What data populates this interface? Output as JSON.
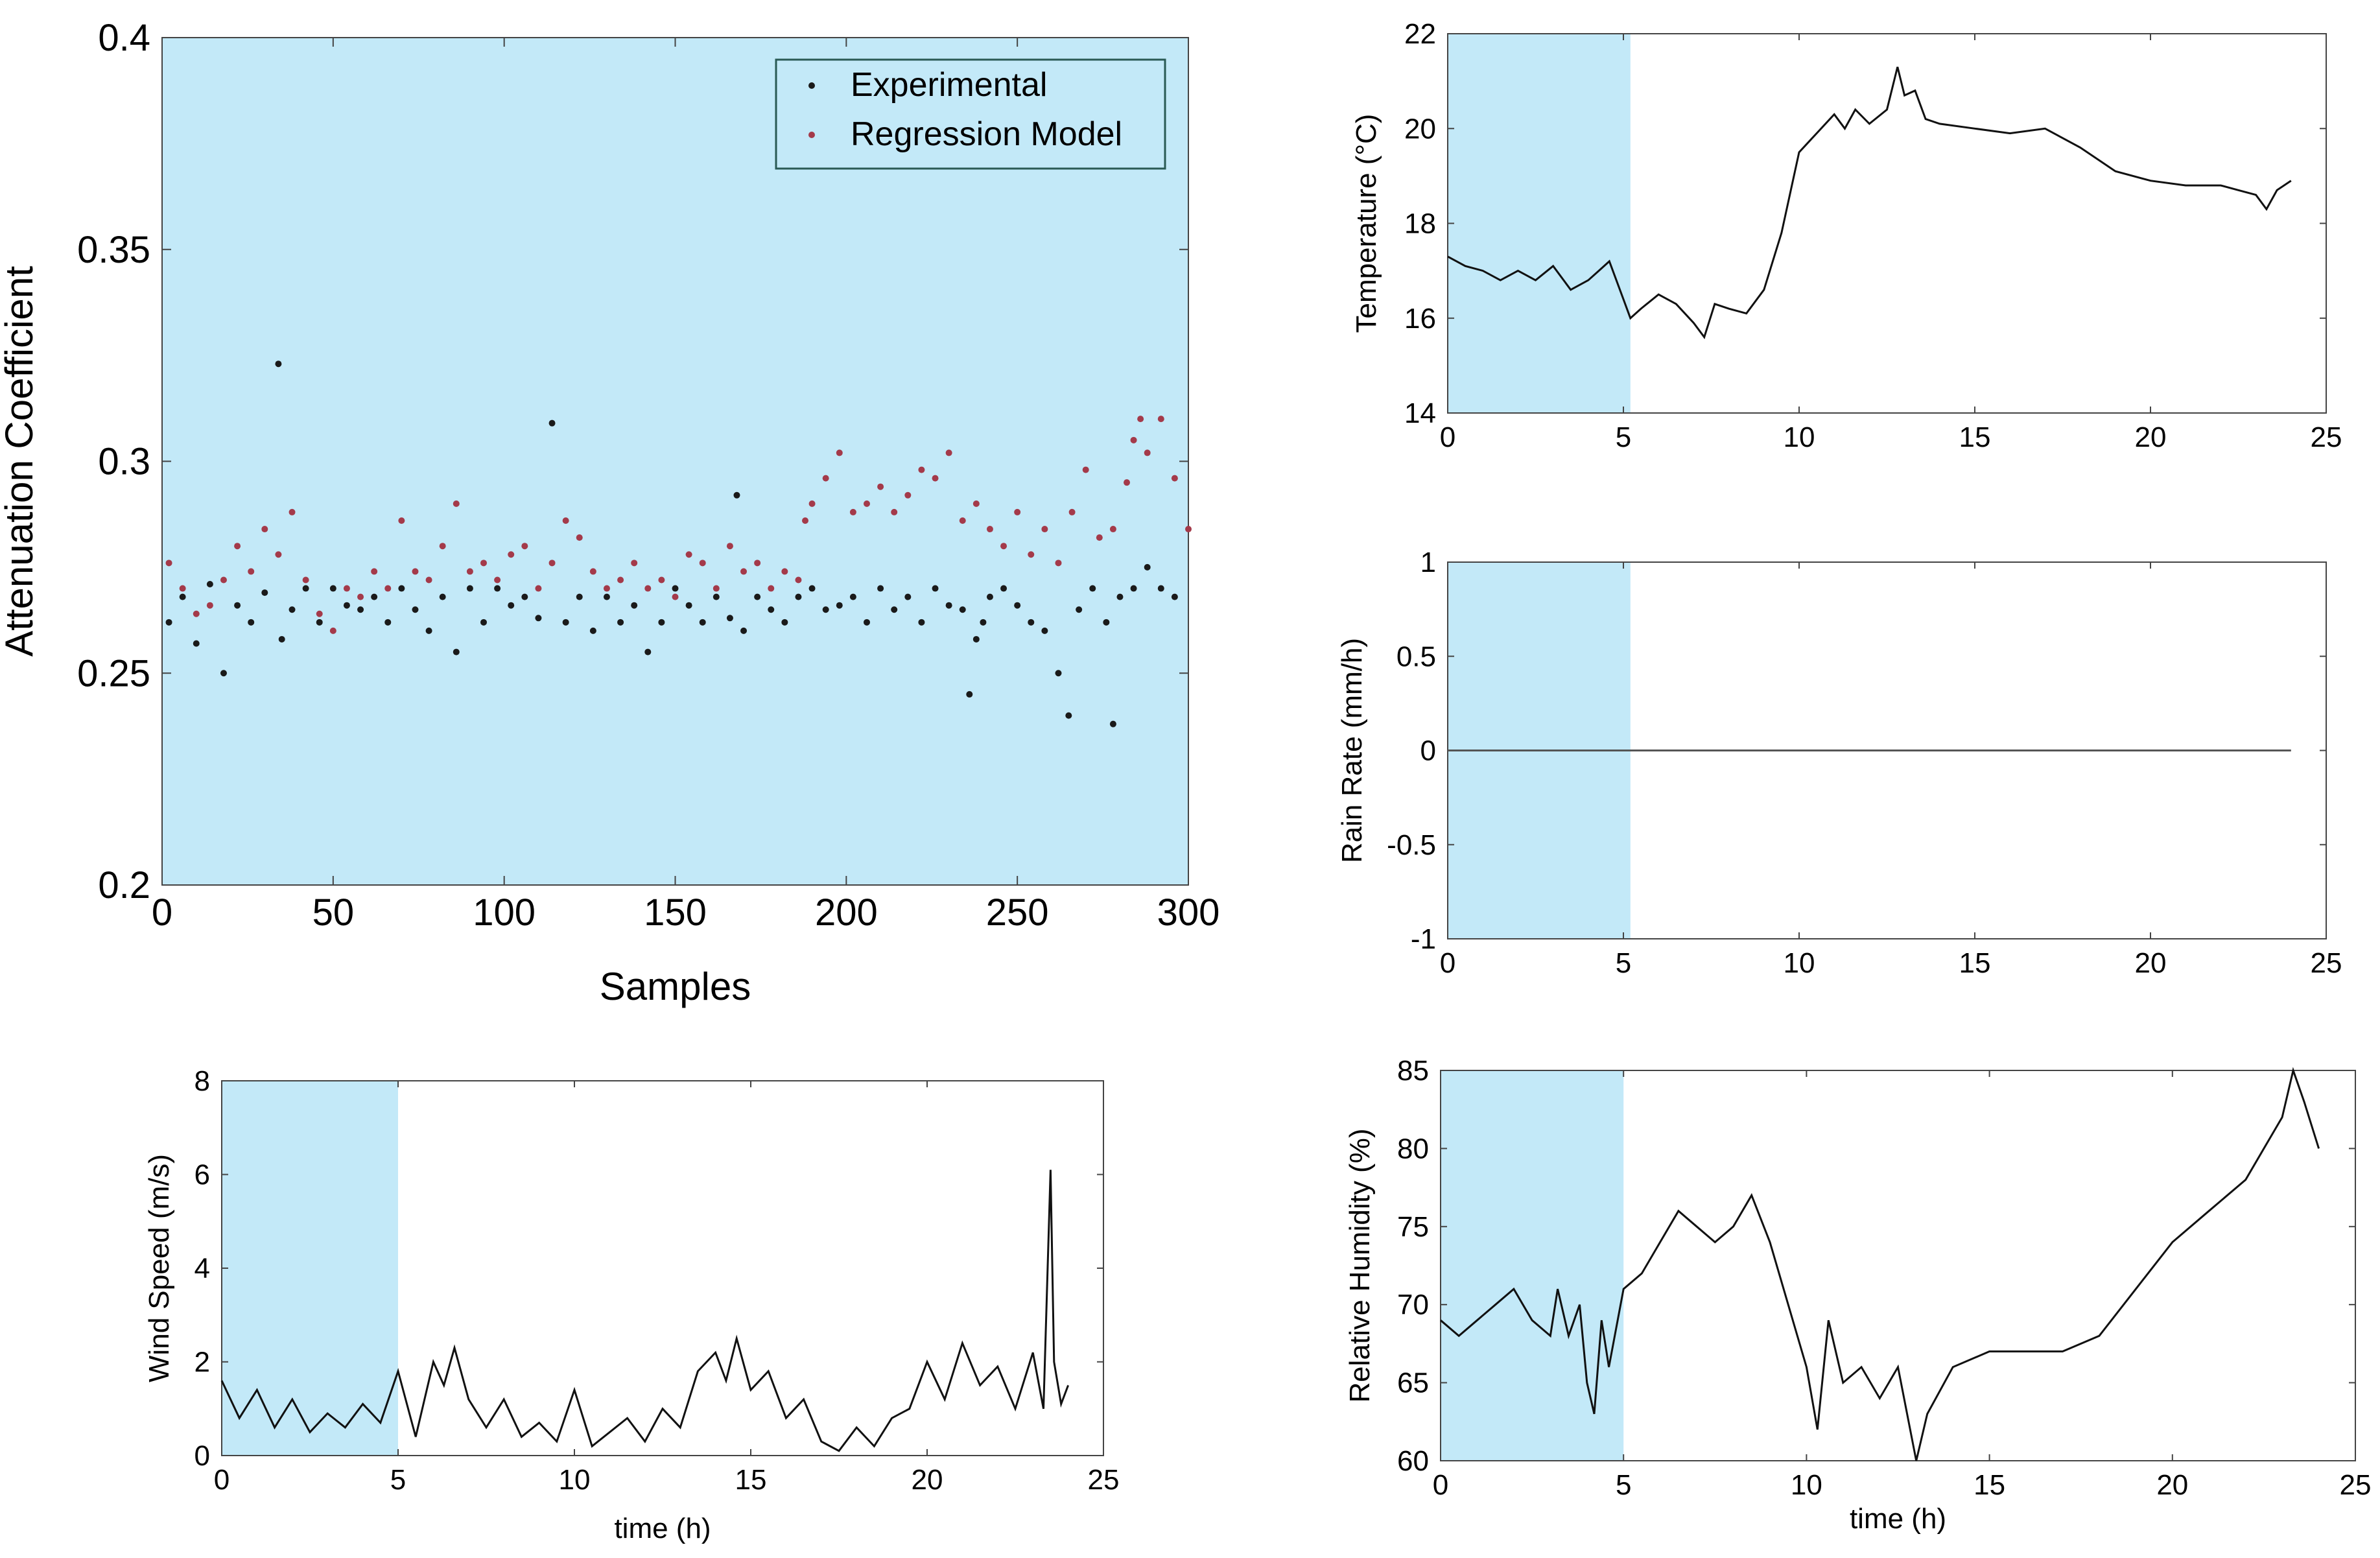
{
  "chart_data": [
    {
      "id": "attenuation",
      "type": "scatter",
      "title": "",
      "xlabel": "Samples",
      "ylabel": "Attenuation Coefficient",
      "xlim": [
        0,
        300
      ],
      "ylim": [
        0.2,
        0.4
      ],
      "xticks": [
        0,
        50,
        100,
        150,
        200,
        250,
        300
      ],
      "yticks": [
        0.2,
        0.25,
        0.3,
        0.35,
        0.4
      ],
      "ytick_labels": [
        "0.2",
        "0.25",
        "0.3",
        "0.35",
        "0.4"
      ],
      "shade": {
        "from": 0,
        "to": 300,
        "color": "#c3e9f8"
      },
      "legend": {
        "position": "top-right",
        "entries": [
          "Experimental",
          "Regression Model"
        ]
      },
      "series": [
        {
          "name": "Experimental",
          "color": "#1a1a1a",
          "x": [
            2,
            6,
            10,
            14,
            18,
            22,
            26,
            30,
            34,
            35,
            38,
            42,
            46,
            50,
            54,
            58,
            62,
            66,
            70,
            74,
            78,
            82,
            86,
            90,
            94,
            98,
            102,
            106,
            110,
            114,
            118,
            122,
            126,
            130,
            134,
            138,
            142,
            146,
            150,
            154,
            158,
            162,
            166,
            168,
            170,
            174,
            178,
            182,
            186,
            190,
            194,
            198,
            202,
            206,
            210,
            214,
            218,
            222,
            226,
            230,
            234,
            236,
            238,
            240,
            242,
            246,
            250,
            254,
            258,
            262,
            265,
            268,
            272,
            276,
            278,
            280,
            284,
            288,
            292,
            296
          ],
          "y": [
            0.262,
            0.268,
            0.257,
            0.271,
            0.25,
            0.266,
            0.262,
            0.269,
            0.323,
            0.258,
            0.265,
            0.27,
            0.262,
            0.27,
            0.266,
            0.265,
            0.268,
            0.262,
            0.27,
            0.265,
            0.26,
            0.268,
            0.255,
            0.27,
            0.262,
            0.27,
            0.266,
            0.268,
            0.263,
            0.309,
            0.262,
            0.268,
            0.26,
            0.268,
            0.262,
            0.266,
            0.255,
            0.262,
            0.27,
            0.266,
            0.262,
            0.268,
            0.263,
            0.292,
            0.26,
            0.268,
            0.265,
            0.262,
            0.268,
            0.27,
            0.265,
            0.266,
            0.268,
            0.262,
            0.27,
            0.265,
            0.268,
            0.262,
            0.27,
            0.266,
            0.265,
            0.245,
            0.258,
            0.262,
            0.268,
            0.27,
            0.266,
            0.262,
            0.26,
            0.25,
            0.24,
            0.265,
            0.27,
            0.262,
            0.238,
            0.268,
            0.27,
            0.275,
            0.27,
            0.268
          ]
        },
        {
          "name": "Regression Model",
          "color": "#a43a4a",
          "x": [
            2,
            6,
            10,
            14,
            18,
            22,
            26,
            30,
            34,
            38,
            42,
            46,
            50,
            54,
            58,
            62,
            66,
            70,
            74,
            78,
            82,
            86,
            90,
            94,
            98,
            102,
            106,
            110,
            114,
            118,
            122,
            126,
            130,
            134,
            138,
            142,
            146,
            150,
            154,
            158,
            162,
            166,
            170,
            174,
            178,
            182,
            186,
            188,
            190,
            194,
            198,
            202,
            206,
            210,
            214,
            218,
            222,
            226,
            230,
            234,
            238,
            242,
            246,
            250,
            254,
            258,
            262,
            266,
            270,
            274,
            278,
            282,
            284,
            286,
            288,
            292,
            296,
            300
          ],
          "y": [
            0.276,
            0.27,
            0.264,
            0.266,
            0.272,
            0.28,
            0.274,
            0.284,
            0.278,
            0.288,
            0.272,
            0.264,
            0.26,
            0.27,
            0.268,
            0.274,
            0.27,
            0.286,
            0.274,
            0.272,
            0.28,
            0.29,
            0.274,
            0.276,
            0.272,
            0.278,
            0.28,
            0.27,
            0.276,
            0.286,
            0.282,
            0.274,
            0.27,
            0.272,
            0.276,
            0.27,
            0.272,
            0.268,
            0.278,
            0.276,
            0.27,
            0.28,
            0.274,
            0.276,
            0.27,
            0.274,
            0.272,
            0.286,
            0.29,
            0.296,
            0.302,
            0.288,
            0.29,
            0.294,
            0.288,
            0.292,
            0.298,
            0.296,
            0.302,
            0.286,
            0.29,
            0.284,
            0.28,
            0.288,
            0.278,
            0.284,
            0.276,
            0.288,
            0.298,
            0.282,
            0.284,
            0.295,
            0.305,
            0.31,
            0.302,
            0.31,
            0.296,
            0.284
          ]
        }
      ]
    },
    {
      "id": "temperature",
      "type": "line",
      "title": "",
      "xlabel": "",
      "ylabel": "Temperature (°C)",
      "xlim": [
        0,
        25
      ],
      "ylim": [
        14,
        22
      ],
      "xticks": [
        0,
        5,
        10,
        15,
        20,
        25
      ],
      "yticks": [
        14,
        16,
        18,
        20,
        22
      ],
      "shade": {
        "from": 0,
        "to": 5.2,
        "color": "#c3e9f8"
      },
      "x": [
        0,
        0.5,
        1,
        1.5,
        2,
        2.5,
        3,
        3.5,
        4,
        4.3,
        4.6,
        5,
        5.2,
        5.5,
        6,
        6.5,
        7,
        7.3,
        7.6,
        8,
        8.5,
        9,
        9.5,
        10,
        10.5,
        11,
        11.3,
        11.6,
        12,
        12.5,
        12.8,
        13,
        13.3,
        13.6,
        14,
        15,
        16,
        17,
        17.5,
        18,
        19,
        20,
        21,
        22,
        22.5,
        23,
        23.3,
        23.6,
        24
      ],
      "y": [
        17.3,
        17.1,
        17.0,
        16.8,
        17.0,
        16.8,
        17.1,
        16.6,
        16.8,
        17.0,
        17.2,
        16.4,
        16.0,
        16.2,
        16.5,
        16.3,
        15.9,
        15.6,
        16.3,
        16.2,
        16.1,
        16.6,
        17.8,
        19.5,
        19.9,
        20.3,
        20.0,
        20.4,
        20.1,
        20.4,
        21.3,
        20.7,
        20.8,
        20.2,
        20.1,
        20.0,
        19.9,
        20.0,
        19.8,
        19.6,
        19.1,
        18.9,
        18.8,
        18.8,
        18.7,
        18.6,
        18.3,
        18.7,
        18.9
      ]
    },
    {
      "id": "rainrate",
      "type": "line",
      "title": "",
      "xlabel": "",
      "ylabel": "Rain Rate (mm/h)",
      "xlim": [
        0,
        25
      ],
      "ylim": [
        -1,
        1
      ],
      "xticks": [
        0,
        5,
        10,
        15,
        20,
        25
      ],
      "yticks": [
        -1,
        -0.5,
        0,
        0.5,
        1
      ],
      "shade": {
        "from": 0,
        "to": 5.2,
        "color": "#c3e9f8"
      },
      "x": [
        0,
        24
      ],
      "y": [
        0,
        0
      ]
    },
    {
      "id": "windspeed",
      "type": "line",
      "title": "",
      "xlabel": "time (h)",
      "ylabel": "Wind Speed (m/s)",
      "xlim": [
        0,
        25
      ],
      "ylim": [
        0,
        8
      ],
      "xticks": [
        0,
        5,
        10,
        15,
        20,
        25
      ],
      "yticks": [
        0,
        2,
        4,
        6,
        8
      ],
      "shade": {
        "from": 0,
        "to": 5,
        "color": "#c3e9f8"
      },
      "x": [
        0,
        0.5,
        1,
        1.5,
        2,
        2.5,
        3,
        3.5,
        4,
        4.5,
        5,
        5.5,
        6,
        6.3,
        6.6,
        7,
        7.5,
        8,
        8.5,
        9,
        9.5,
        10,
        10.5,
        11,
        11.5,
        12,
        12.5,
        13,
        13.5,
        14,
        14.3,
        14.6,
        15,
        15.5,
        16,
        16.5,
        17,
        17.5,
        18,
        18.5,
        19,
        19.5,
        20,
        20.5,
        21,
        21.5,
        22,
        22.5,
        23,
        23.3,
        23.5,
        23.6,
        23.8,
        24
      ],
      "y": [
        1.6,
        0.8,
        1.4,
        0.6,
        1.2,
        0.5,
        0.9,
        0.6,
        1.1,
        0.7,
        1.8,
        0.4,
        2.0,
        1.5,
        2.3,
        1.2,
        0.6,
        1.2,
        0.4,
        0.7,
        0.3,
        1.4,
        0.2,
        0.5,
        0.8,
        0.3,
        1.0,
        0.6,
        1.8,
        2.2,
        1.6,
        2.5,
        1.4,
        1.8,
        0.8,
        1.2,
        0.3,
        0.1,
        0.6,
        0.2,
        0.8,
        1.0,
        2.0,
        1.2,
        2.4,
        1.5,
        1.9,
        1.0,
        2.2,
        1.0,
        6.1,
        2.0,
        1.1,
        1.5
      ]
    },
    {
      "id": "humidity",
      "type": "line",
      "title": "",
      "xlabel": "time (h)",
      "ylabel": "Relative Humidity (%)",
      "xlim": [
        0,
        25
      ],
      "ylim": [
        60,
        85
      ],
      "xticks": [
        0,
        5,
        10,
        15,
        20,
        25
      ],
      "yticks": [
        60,
        65,
        70,
        75,
        80,
        85
      ],
      "shade": {
        "from": 0,
        "to": 5,
        "color": "#c3e9f8"
      },
      "x": [
        0,
        0.5,
        1,
        1.5,
        2,
        2.5,
        3,
        3.2,
        3.5,
        3.8,
        4,
        4.2,
        4.4,
        4.6,
        5,
        5.5,
        6,
        6.5,
        7,
        7.5,
        8,
        8.5,
        9,
        9.5,
        10,
        10.3,
        10.6,
        11,
        11.5,
        12,
        12.5,
        13,
        13.3,
        14,
        15,
        16,
        17,
        18,
        19,
        20,
        21,
        22,
        22.5,
        23,
        23.3,
        23.6,
        24
      ],
      "y": [
        69,
        68,
        69,
        70,
        71,
        69,
        68,
        71,
        68,
        70,
        65,
        63,
        69,
        66,
        71,
        72,
        74,
        76,
        75,
        74,
        75,
        77,
        74,
        70,
        66,
        62,
        69,
        65,
        66,
        64,
        66,
        60,
        63,
        66,
        67,
        67,
        67,
        68,
        71,
        74,
        76,
        78,
        80,
        82,
        85,
        83,
        80
      ]
    }
  ]
}
